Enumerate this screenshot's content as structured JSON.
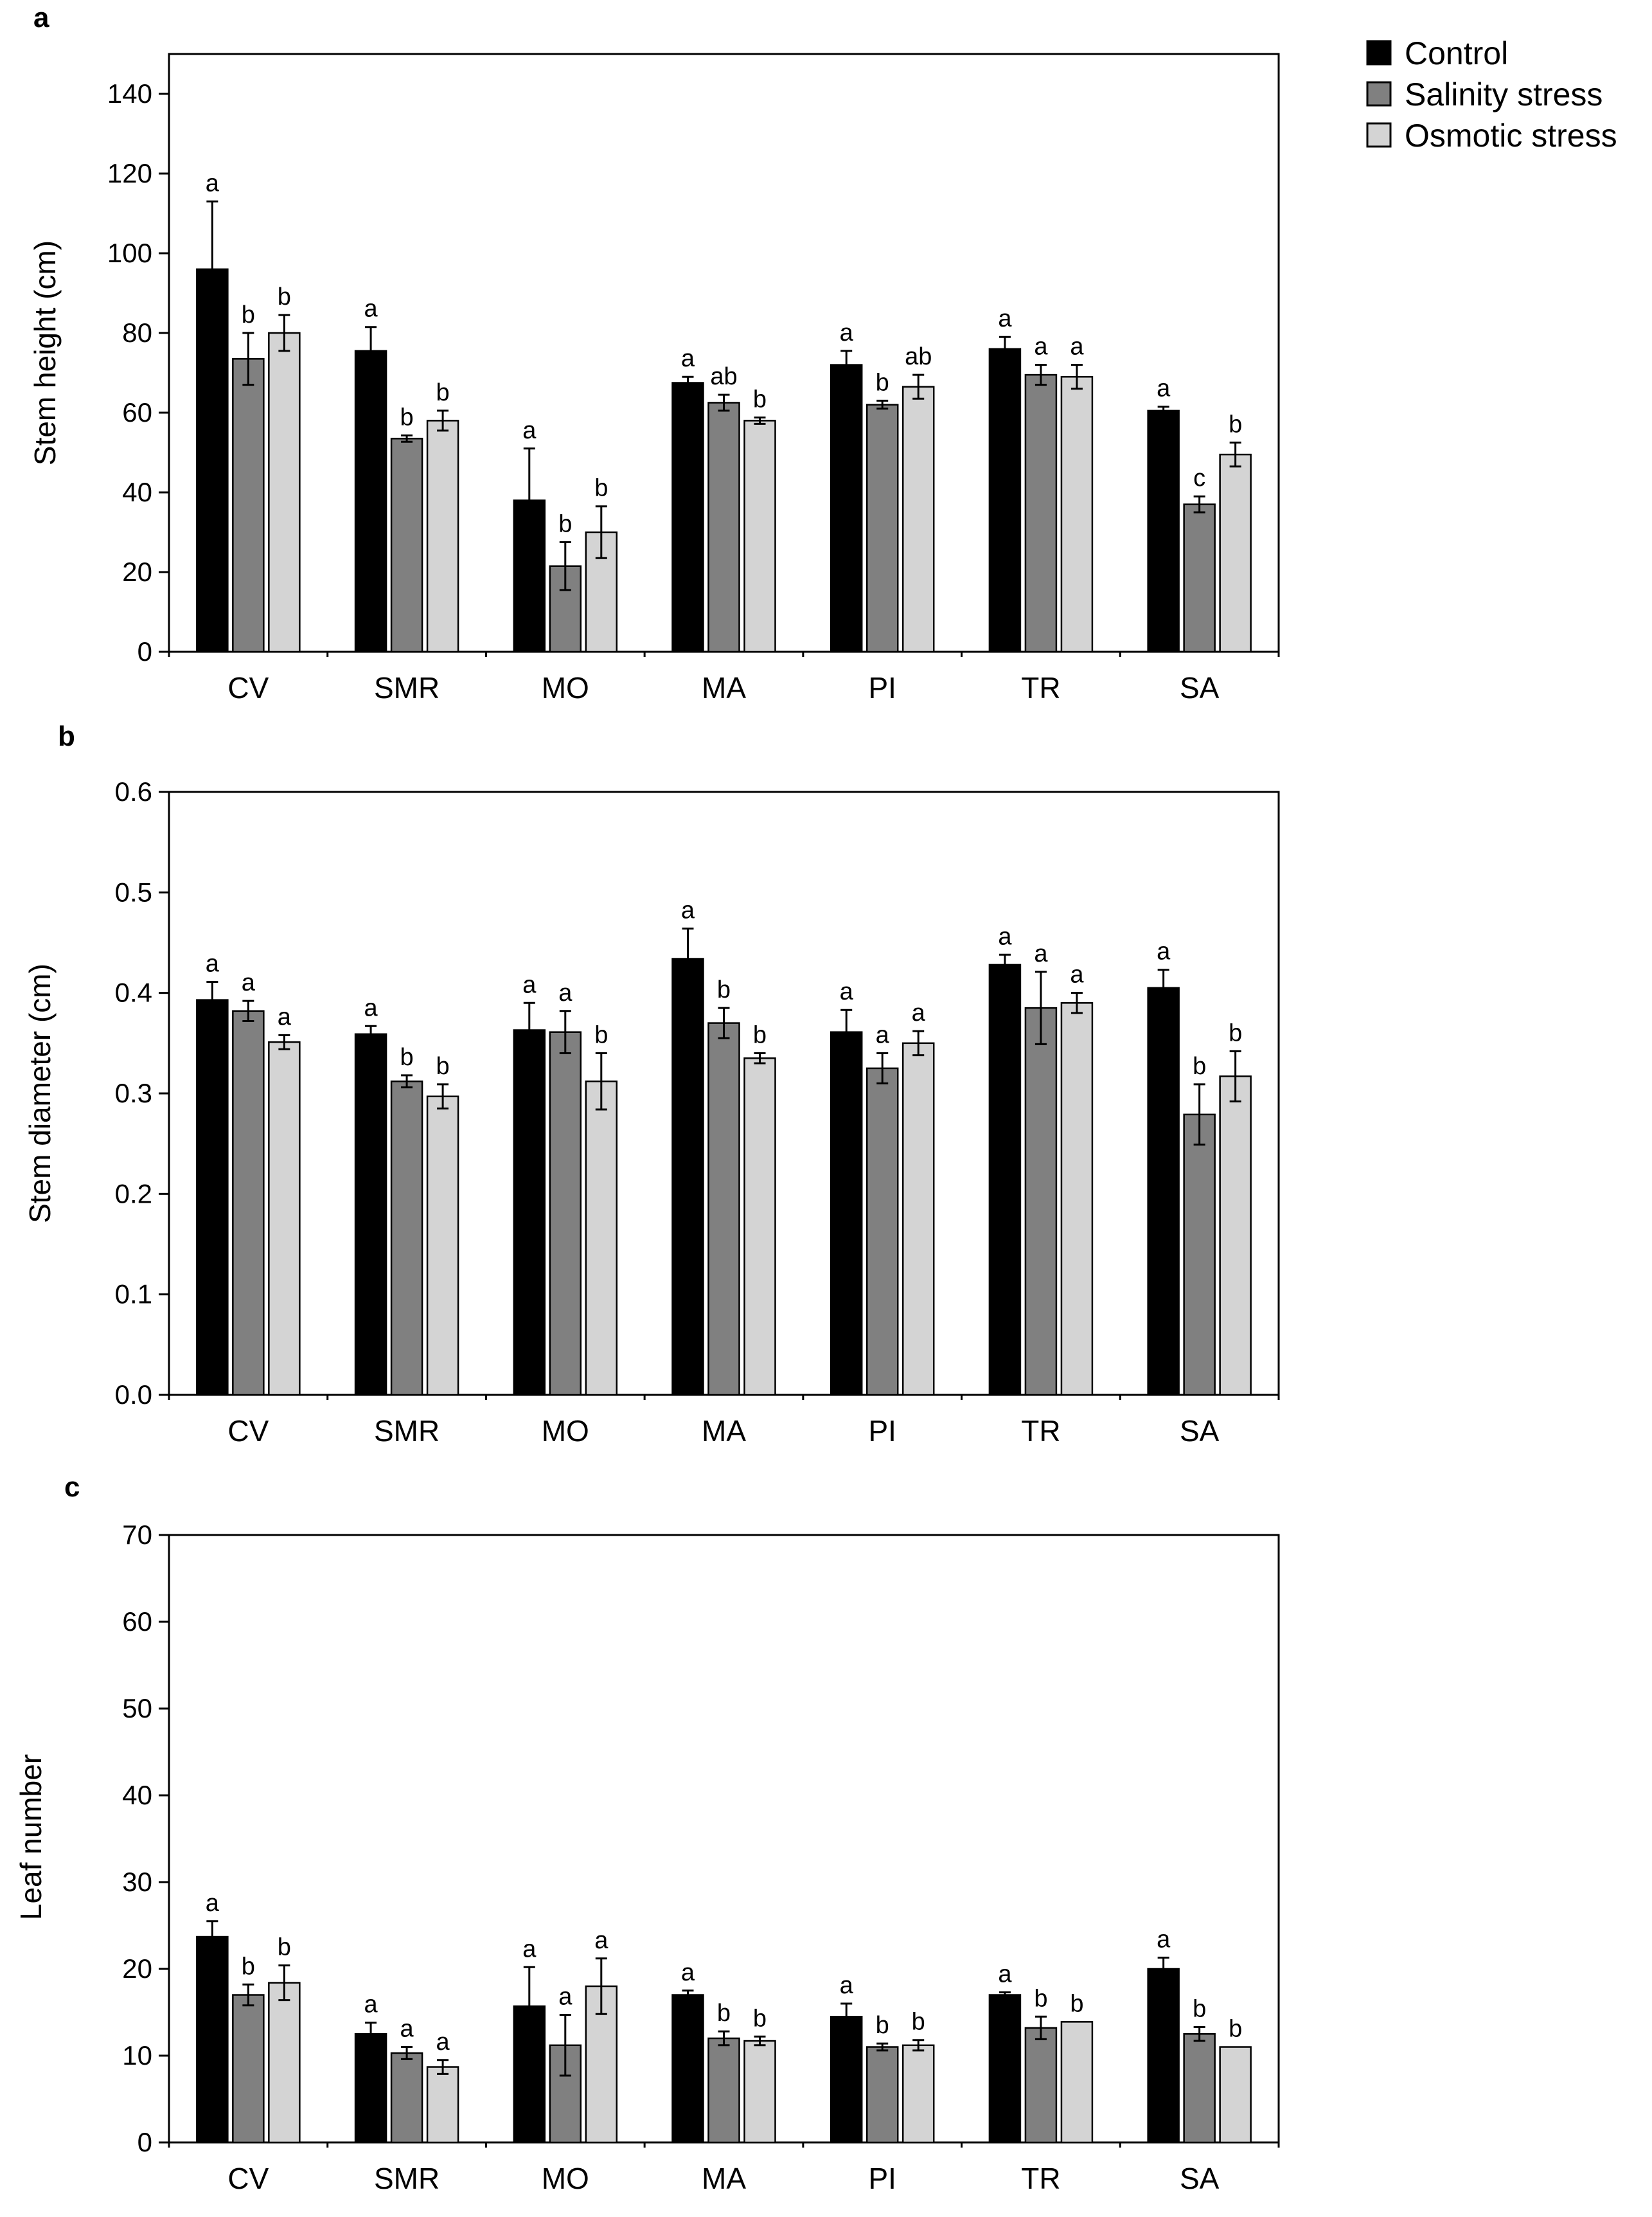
{
  "legend": {
    "items": [
      {
        "label": "Control",
        "color": "#000000"
      },
      {
        "label": "Salinity stress",
        "color": "#808080"
      },
      {
        "label": "Osmotic stress",
        "color": "#d4d4d4"
      }
    ]
  },
  "chart_data": [
    {
      "panel": "a",
      "type": "bar",
      "ylabel": "Stem height (cm)",
      "ylim": [
        0,
        150
      ],
      "yticks": [
        "0",
        "20",
        "40",
        "60",
        "80",
        "100",
        "120",
        "140"
      ],
      "categories": [
        "CV",
        "SMR",
        "MO",
        "MA",
        "PI",
        "TR",
        "SA"
      ],
      "series": [
        {
          "name": "Control",
          "values": [
            96,
            75.5,
            38,
            67.5,
            72,
            76,
            60.5
          ],
          "errors": [
            17,
            6,
            13,
            1.5,
            3.5,
            3,
            1
          ],
          "letters": [
            "a",
            "a",
            "a",
            "a",
            "a",
            "a",
            "a"
          ]
        },
        {
          "name": "Salinity stress",
          "values": [
            73.5,
            53.5,
            21.5,
            62.5,
            62,
            69.5,
            37
          ],
          "errors": [
            6.5,
            0.8,
            6,
            2,
            1,
            2.5,
            2
          ],
          "letters": [
            "b",
            "b",
            "b",
            "ab",
            "b",
            "a",
            "c"
          ]
        },
        {
          "name": "Osmotic stress",
          "values": [
            80,
            58,
            30,
            58,
            66.5,
            69,
            49.5
          ],
          "errors": [
            4.5,
            2.5,
            6.5,
            0.8,
            3,
            3,
            3
          ],
          "letters": [
            "b",
            "b",
            "b",
            "b",
            "ab",
            "a",
            "b"
          ]
        }
      ]
    },
    {
      "panel": "b",
      "type": "bar",
      "ylabel": "Stem diameter (cm)",
      "ylim": [
        0,
        0.6
      ],
      "yticks": [
        "0.0",
        "0.1",
        "0.2",
        "0.3",
        "0.4",
        "0.5",
        "0.6"
      ],
      "categories": [
        "CV",
        "SMR",
        "MO",
        "MA",
        "PI",
        "TR",
        "SA"
      ],
      "series": [
        {
          "name": "Control",
          "values": [
            0.393,
            0.359,
            0.363,
            0.434,
            0.361,
            0.428,
            0.405
          ],
          "errors": [
            0.018,
            0.008,
            0.027,
            0.03,
            0.022,
            0.01,
            0.018
          ],
          "letters": [
            "a",
            "a",
            "a",
            "a",
            "a",
            "a",
            "a"
          ]
        },
        {
          "name": "Salinity stress",
          "values": [
            0.382,
            0.312,
            0.361,
            0.37,
            0.325,
            0.385,
            0.279
          ],
          "errors": [
            0.01,
            0.006,
            0.021,
            0.015,
            0.015,
            0.036,
            0.03
          ],
          "letters": [
            "a",
            "b",
            "a",
            "b",
            "a",
            "a",
            "b"
          ]
        },
        {
          "name": "Osmotic stress",
          "values": [
            0.351,
            0.297,
            0.312,
            0.335,
            0.35,
            0.39,
            0.317
          ],
          "errors": [
            0.007,
            0.012,
            0.028,
            0.005,
            0.012,
            0.01,
            0.025
          ],
          "letters": [
            "a",
            "b",
            "b",
            "b",
            "a",
            "a",
            "b"
          ]
        }
      ]
    },
    {
      "panel": "c",
      "type": "bar",
      "ylabel": "Leaf number",
      "ylim": [
        0,
        70
      ],
      "yticks": [
        "0",
        "10",
        "20",
        "30",
        "40",
        "50",
        "60",
        "70"
      ],
      "categories": [
        "CV",
        "SMR",
        "MO",
        "MA",
        "PI",
        "TR",
        "SA"
      ],
      "series": [
        {
          "name": "Control",
          "values": [
            23.7,
            12.5,
            15.7,
            17,
            14.5,
            17,
            20
          ],
          "errors": [
            1.8,
            1.3,
            4.5,
            0.5,
            1.5,
            0.3,
            1.3
          ],
          "letters": [
            "a",
            "a",
            "a",
            "a",
            "a",
            "a",
            "a"
          ]
        },
        {
          "name": "Salinity stress",
          "values": [
            17,
            10.3,
            11.2,
            12,
            11,
            13.2,
            12.5
          ],
          "errors": [
            1.2,
            0.7,
            3.5,
            0.8,
            0.4,
            1.3,
            0.8
          ],
          "letters": [
            "b",
            "a",
            "a",
            "b",
            "b",
            "b",
            "b"
          ]
        },
        {
          "name": "Osmotic stress",
          "values": [
            18.4,
            8.7,
            18,
            11.7,
            11.2,
            13.9,
            11
          ],
          "errors": [
            2,
            0.8,
            3.2,
            0.5,
            0.6,
            0,
            0
          ],
          "letters": [
            "b",
            "a",
            "a",
            "b",
            "b",
            "b",
            "b"
          ]
        }
      ]
    }
  ]
}
